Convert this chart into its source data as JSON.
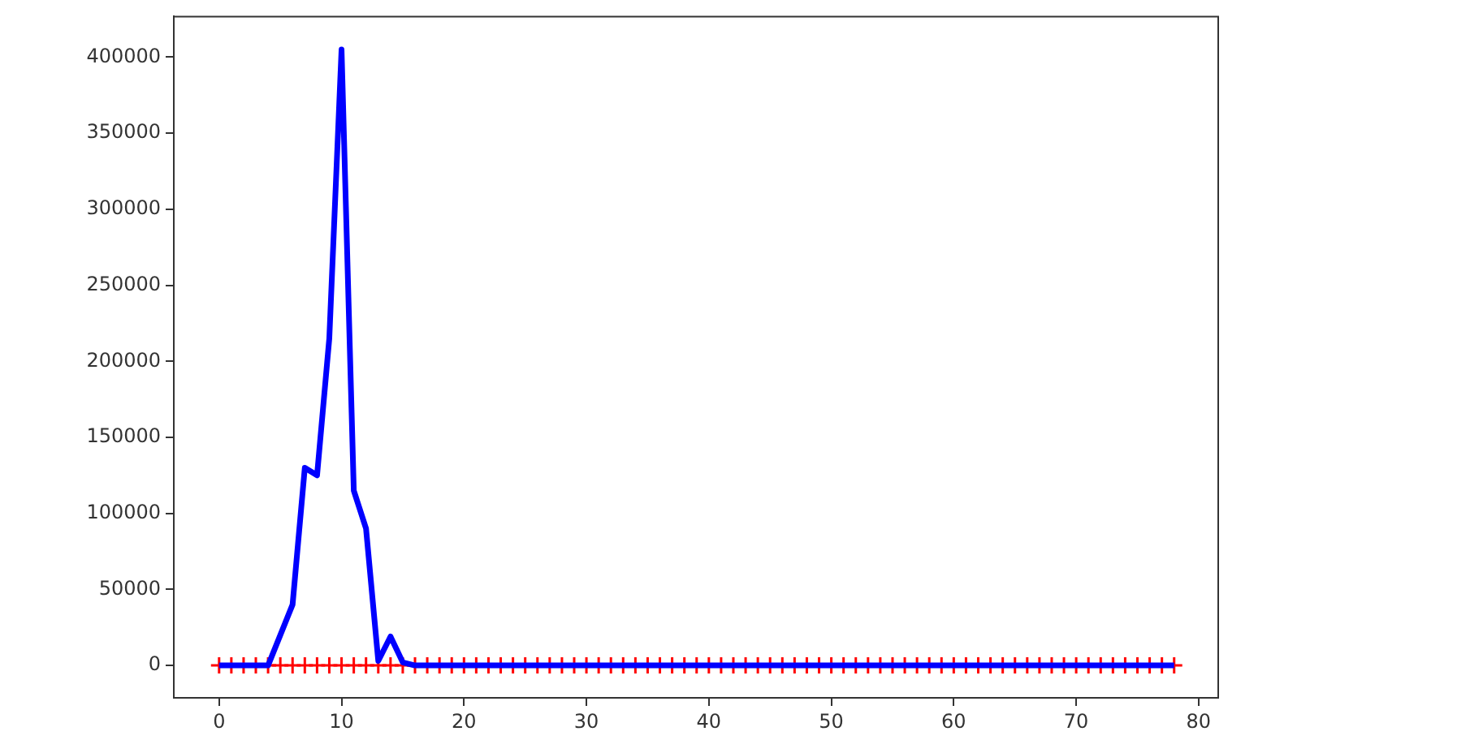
{
  "chart_data": {
    "type": "line",
    "x": [
      0,
      1,
      2,
      3,
      4,
      5,
      6,
      7,
      8,
      9,
      10,
      11,
      12,
      13,
      14,
      15,
      16,
      17,
      18,
      19,
      20,
      21,
      22,
      23,
      24,
      25,
      26,
      27,
      28,
      29,
      30,
      31,
      32,
      33,
      34,
      35,
      36,
      37,
      38,
      39,
      40,
      41,
      42,
      43,
      44,
      45,
      46,
      47,
      48,
      49,
      50,
      51,
      52,
      53,
      54,
      55,
      56,
      57,
      58,
      59,
      60,
      61,
      62,
      63,
      64,
      65,
      66,
      67,
      68,
      69,
      70,
      71,
      72,
      73,
      74,
      75,
      76,
      77,
      78
    ],
    "series": [
      {
        "type": "scatter",
        "color": "#ff0000",
        "marker": "cross",
        "values": [
          0,
          0,
          0,
          0,
          0,
          0,
          0,
          0,
          0,
          0,
          0,
          0,
          0,
          0,
          0,
          0,
          0,
          0,
          0,
          0,
          0,
          0,
          0,
          0,
          0,
          0,
          0,
          0,
          0,
          0,
          0,
          0,
          0,
          0,
          0,
          0,
          0,
          0,
          0,
          0,
          0,
          0,
          0,
          0,
          0,
          0,
          0,
          0,
          0,
          0,
          0,
          0,
          0,
          0,
          0,
          0,
          0,
          0,
          0,
          0,
          0,
          0,
          0,
          0,
          0,
          0,
          0,
          0,
          0,
          0,
          0,
          0,
          0,
          0,
          0,
          0,
          0,
          0,
          0
        ]
      },
      {
        "color": "#0000ff",
        "values": [
          0,
          0,
          0,
          0,
          0,
          20000,
          40000,
          130000,
          125000,
          215000,
          405000,
          115000,
          90000,
          3000,
          19000,
          2000,
          0,
          0,
          0,
          0,
          0,
          0,
          0,
          0,
          0,
          0,
          0,
          0,
          0,
          0,
          0,
          0,
          0,
          0,
          0,
          0,
          0,
          0,
          0,
          0,
          0,
          0,
          0,
          0,
          0,
          0,
          0,
          0,
          0,
          0,
          0,
          0,
          0,
          0,
          0,
          0,
          0,
          0,
          0,
          0,
          0,
          0,
          0,
          0,
          0,
          0,
          0,
          0,
          0,
          0,
          0,
          0,
          0,
          0,
          0,
          0,
          0,
          0,
          0
        ]
      }
    ],
    "xlim": [
      -3.7,
      81.6
    ],
    "xticks": [
      0,
      10,
      20,
      30,
      40,
      50,
      60,
      70,
      80
    ],
    "ylim": [
      -21300,
      426700
    ],
    "yticks": [
      0,
      50000,
      100000,
      150000,
      200000,
      250000,
      300000,
      350000,
      400000
    ],
    "grid": false,
    "legend": false
  }
}
